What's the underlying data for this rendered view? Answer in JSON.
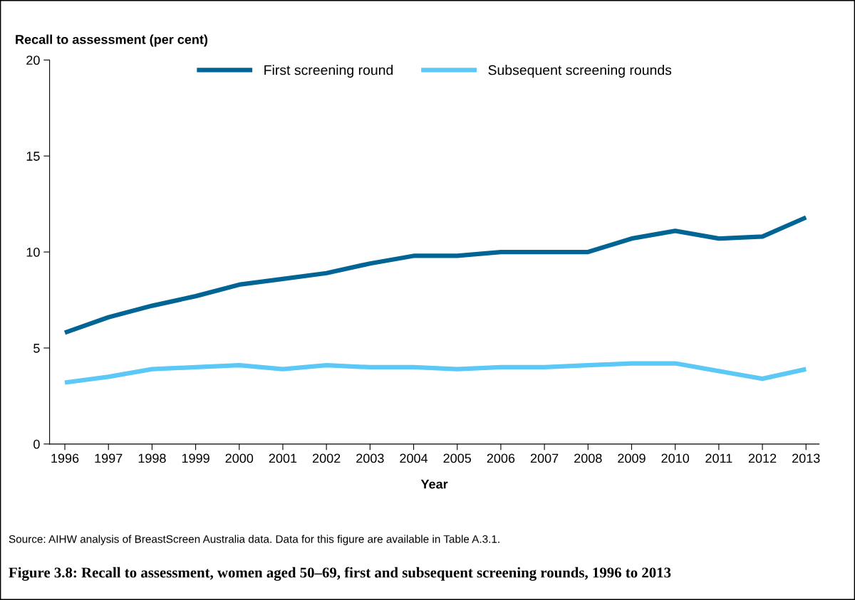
{
  "chart_data": {
    "type": "line",
    "title": "Figure 3.8: Recall to assessment, women aged 50–69, first and subsequent screening rounds, 1996 to 2013",
    "ylabel": "Recall to assessment (per cent)",
    "xlabel": "Year",
    "categories": [
      "1996",
      "1997",
      "1998",
      "1999",
      "2000",
      "2001",
      "2002",
      "2003",
      "2004",
      "2005",
      "2006",
      "2007",
      "2008",
      "2009",
      "2010",
      "2011",
      "2012",
      "2013"
    ],
    "series": [
      {
        "name": "First screening round",
        "color": "#006595",
        "values": [
          5.8,
          6.6,
          7.2,
          7.7,
          8.3,
          8.6,
          8.9,
          9.4,
          9.8,
          9.8,
          10.0,
          10.0,
          10.0,
          10.7,
          11.1,
          10.7,
          10.8,
          11.8
        ]
      },
      {
        "name": "Subsequent screening rounds",
        "color": "#5bc8f5",
        "values": [
          3.2,
          3.5,
          3.9,
          4.0,
          4.1,
          3.9,
          4.1,
          4.0,
          4.0,
          3.9,
          4.0,
          4.0,
          4.1,
          4.2,
          4.2,
          3.8,
          3.4,
          3.9
        ]
      }
    ],
    "ylim": [
      0,
      20
    ],
    "yticks": [
      0,
      5,
      10,
      15,
      20
    ],
    "grid": false,
    "legend": "top",
    "marker": "none",
    "line_style": "solid",
    "annotations": [
      "Source: AIHW analysis of BreastScreen Australia data. Data for this figure are available in Table A.3.1."
    ]
  }
}
